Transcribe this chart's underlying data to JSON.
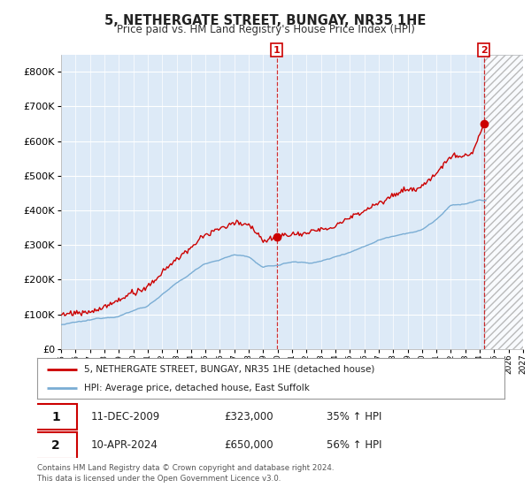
{
  "title": "5, NETHERGATE STREET, BUNGAY, NR35 1HE",
  "subtitle": "Price paid vs. HM Land Registry's House Price Index (HPI)",
  "ylim": [
    0,
    850000
  ],
  "yticks": [
    0,
    100000,
    200000,
    300000,
    400000,
    500000,
    600000,
    700000,
    800000
  ],
  "background_color": "#ddeaf7",
  "grid_color": "#ffffff",
  "red_line_color": "#cc0000",
  "blue_line_color": "#7aadd4",
  "transaction1_price": 323000,
  "transaction1_date": "11-DEC-2009",
  "transaction1_label": "35% ↑ HPI",
  "transaction1_x": 2009.94,
  "transaction2_price": 650000,
  "transaction2_date": "10-APR-2024",
  "transaction2_label": "56% ↑ HPI",
  "transaction2_x": 2024.28,
  "legend_line1": "5, NETHERGATE STREET, BUNGAY, NR35 1HE (detached house)",
  "legend_line2": "HPI: Average price, detached house, East Suffolk",
  "footer": "Contains HM Land Registry data © Crown copyright and database right 2024.\nThis data is licensed under the Open Government Licence v3.0.",
  "x_start": 1995,
  "x_end": 2027,
  "xtick_years": [
    1995,
    1996,
    1997,
    1998,
    1999,
    2000,
    2001,
    2002,
    2003,
    2004,
    2005,
    2006,
    2007,
    2008,
    2009,
    2010,
    2011,
    2012,
    2013,
    2014,
    2015,
    2016,
    2017,
    2018,
    2019,
    2020,
    2021,
    2022,
    2023,
    2024,
    2025,
    2026,
    2027
  ]
}
